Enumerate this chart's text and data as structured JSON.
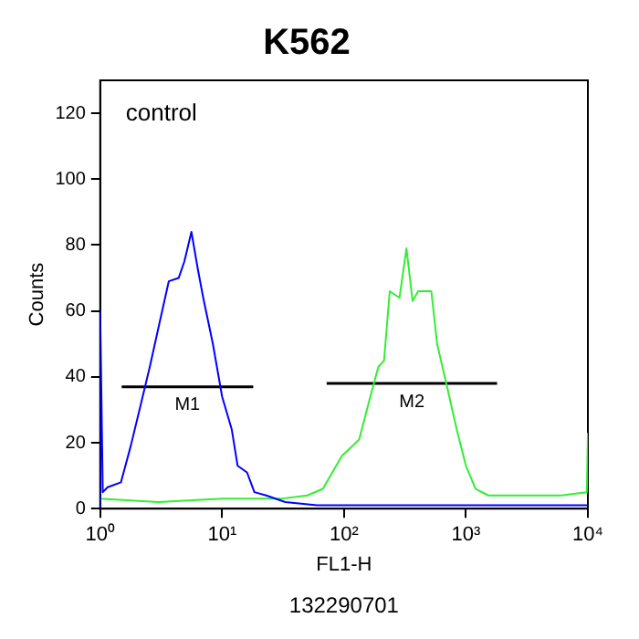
{
  "chart_data": {
    "type": "line",
    "title": "K562",
    "xlabel": "FL1-H",
    "ylabel": "Counts",
    "log": "x",
    "grid": false,
    "legend": false,
    "xlim": [
      1,
      10000
    ],
    "ylim": [
      0,
      130
    ],
    "xticks": [
      {
        "value": 1,
        "label": "10⁰"
      },
      {
        "value": 10,
        "label": "10¹"
      },
      {
        "value": 100,
        "label": "10²"
      },
      {
        "value": 1000,
        "label": "10³"
      },
      {
        "value": 10000,
        "label": "10⁴"
      }
    ],
    "yticks": [
      0,
      20,
      40,
      60,
      80,
      100,
      120
    ],
    "series": [
      {
        "color": "#0000ff",
        "x": [
          1,
          1,
          1.05,
          1.15,
          1.48,
          1.78,
          2.1,
          2.55,
          3.05,
          3.65,
          4.4,
          4.9,
          5.6,
          6.3,
          7,
          8.4,
          10,
          12,
          13.4,
          16,
          18.4,
          23,
          33,
          60,
          200,
          1000,
          5000,
          10000
        ],
        "values": [
          0,
          60,
          5,
          6.5,
          8,
          19,
          30,
          43,
          56,
          69,
          70,
          75,
          84,
          73,
          64,
          50,
          34,
          24,
          13,
          11,
          5,
          4,
          2,
          1,
          1,
          1,
          1,
          1
        ]
      },
      {
        "color": "#33ee33",
        "x": [
          1,
          3,
          10,
          30,
          50,
          67,
          96,
          133,
          159,
          191,
          213,
          237,
          285,
          325,
          365,
          405,
          520,
          580,
          700,
          840,
          1000,
          1200,
          1530,
          3000,
          6000,
          9800,
          10000
        ],
        "values": [
          3,
          2,
          3,
          3,
          4,
          6,
          16,
          21,
          32,
          43,
          45,
          66,
          64,
          79,
          63,
          66,
          66,
          50,
          37,
          24,
          13,
          6,
          4,
          4,
          4,
          5,
          23
        ]
      },
      {
        "name": "M1",
        "color": "#000000",
        "x": [
          1.5,
          18
        ],
        "values": [
          37,
          37
        ]
      },
      {
        "name": "M2",
        "color": "#000000",
        "x": [
          72,
          1800
        ],
        "values": [
          38,
          38
        ]
      }
    ],
    "annotations": [
      "control",
      "132290701"
    ]
  }
}
